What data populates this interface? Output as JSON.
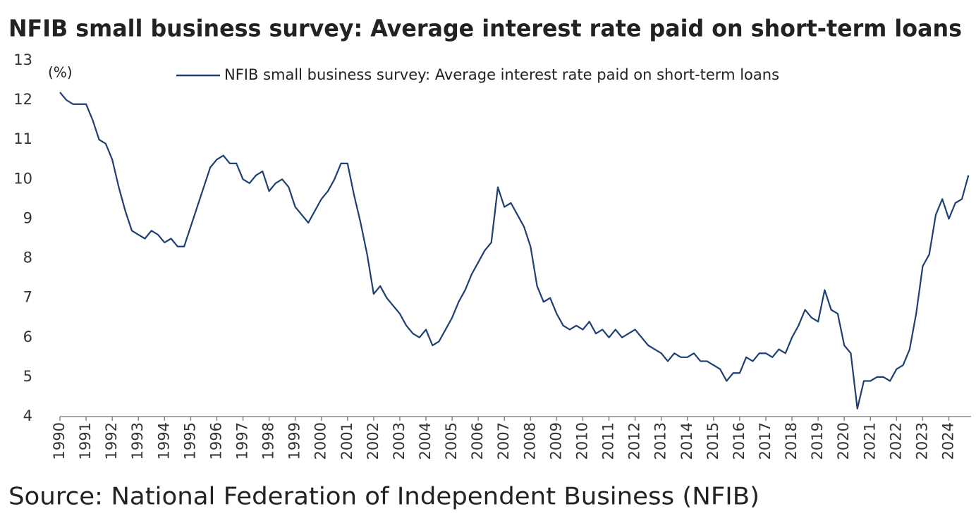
{
  "chart_data": {
    "type": "line",
    "title": "NFIB small business survey: Average interest rate paid on short-term loans",
    "y_unit_label": "(%)",
    "source": "Source: National Federation of Independent Business (NFIB)",
    "legend_position": "top",
    "grid": false,
    "xlim": [
      1990,
      2024.85
    ],
    "xticks": [
      1990,
      1991,
      1992,
      1993,
      1994,
      1995,
      1996,
      1997,
      1998,
      1999,
      2000,
      2001,
      2002,
      2003,
      2004,
      2005,
      2006,
      2007,
      2008,
      2009,
      2010,
      2011,
      2012,
      2013,
      2014,
      2015,
      2016,
      2017,
      2018,
      2019,
      2020,
      2021,
      2022,
      2023,
      2024
    ],
    "ylim": [
      4,
      13
    ],
    "yticks": [
      4,
      5,
      6,
      7,
      8,
      9,
      10,
      11,
      12,
      13
    ],
    "series": [
      {
        "name": "NFIB small business survey: Average interest rate paid on short-term loans",
        "color": "#1f3f73",
        "x": [
          1990,
          1990.25,
          1990.5,
          1990.75,
          1991,
          1991.25,
          1991.5,
          1991.75,
          1992,
          1992.25,
          1992.5,
          1992.75,
          1993,
          1993.25,
          1993.5,
          1993.75,
          1994,
          1994.25,
          1994.5,
          1994.75,
          1995,
          1995.25,
          1995.5,
          1995.75,
          1996,
          1996.25,
          1996.5,
          1996.75,
          1997,
          1997.25,
          1997.5,
          1997.75,
          1998,
          1998.25,
          1998.5,
          1998.75,
          1999,
          1999.25,
          1999.5,
          1999.75,
          2000,
          2000.25,
          2000.5,
          2000.75,
          2001,
          2001.25,
          2001.5,
          2001.75,
          2002,
          2002.25,
          2002.5,
          2002.75,
          2003,
          2003.25,
          2003.5,
          2003.75,
          2004,
          2004.25,
          2004.5,
          2004.75,
          2005,
          2005.25,
          2005.5,
          2005.75,
          2006,
          2006.25,
          2006.5,
          2006.75,
          2007,
          2007.25,
          2007.5,
          2007.75,
          2008,
          2008.25,
          2008.5,
          2008.75,
          2009,
          2009.25,
          2009.5,
          2009.75,
          2010,
          2010.25,
          2010.5,
          2010.75,
          2011,
          2011.25,
          2011.5,
          2011.75,
          2012,
          2012.25,
          2012.5,
          2012.75,
          2013,
          2013.25,
          2013.5,
          2013.75,
          2014,
          2014.25,
          2014.5,
          2014.75,
          2015,
          2015.25,
          2015.5,
          2015.75,
          2016,
          2016.25,
          2016.5,
          2016.75,
          2017,
          2017.25,
          2017.5,
          2017.75,
          2018,
          2018.25,
          2018.5,
          2018.75,
          2019,
          2019.25,
          2019.5,
          2019.75,
          2020,
          2020.25,
          2020.5,
          2020.75,
          2021,
          2021.25,
          2021.5,
          2021.75,
          2022,
          2022.25,
          2022.5,
          2022.75,
          2023,
          2023.25,
          2023.5,
          2023.75,
          2024,
          2024.25,
          2024.5,
          2024.75
        ],
        "values": [
          12.2,
          12.0,
          11.9,
          11.9,
          11.9,
          11.5,
          11.0,
          10.9,
          10.5,
          9.8,
          9.2,
          8.7,
          8.6,
          8.5,
          8.7,
          8.6,
          8.4,
          8.5,
          8.3,
          8.3,
          8.8,
          9.3,
          9.8,
          10.3,
          10.5,
          10.6,
          10.4,
          10.4,
          10.0,
          9.9,
          10.1,
          10.2,
          9.7,
          9.9,
          10.0,
          9.8,
          9.3,
          9.1,
          8.9,
          9.2,
          9.5,
          9.7,
          10.0,
          10.4,
          10.4,
          9.6,
          8.9,
          8.1,
          7.1,
          7.3,
          7.0,
          6.8,
          6.6,
          6.3,
          6.1,
          6.0,
          6.2,
          5.8,
          5.9,
          6.2,
          6.5,
          6.9,
          7.2,
          7.6,
          7.9,
          8.2,
          8.4,
          9.8,
          9.3,
          9.4,
          9.1,
          8.8,
          8.3,
          7.3,
          6.9,
          7.0,
          6.6,
          6.3,
          6.2,
          6.3,
          6.2,
          6.4,
          6.1,
          6.2,
          6.0,
          6.2,
          6.0,
          6.1,
          6.2,
          6.0,
          5.8,
          5.7,
          5.6,
          5.4,
          5.6,
          5.5,
          5.5,
          5.6,
          5.4,
          5.4,
          5.3,
          5.2,
          4.9,
          5.1,
          5.1,
          5.5,
          5.4,
          5.6,
          5.6,
          5.5,
          5.7,
          5.6,
          6.0,
          6.3,
          6.7,
          6.5,
          6.4,
          7.2,
          6.7,
          6.6,
          5.8,
          5.6,
          4.2,
          4.9,
          4.9,
          5.0,
          5.0,
          4.9,
          5.2,
          5.3,
          5.7,
          6.6,
          7.8,
          8.1,
          9.1,
          9.5,
          9.0,
          9.4,
          9.5,
          10.1
        ]
      }
    ]
  }
}
